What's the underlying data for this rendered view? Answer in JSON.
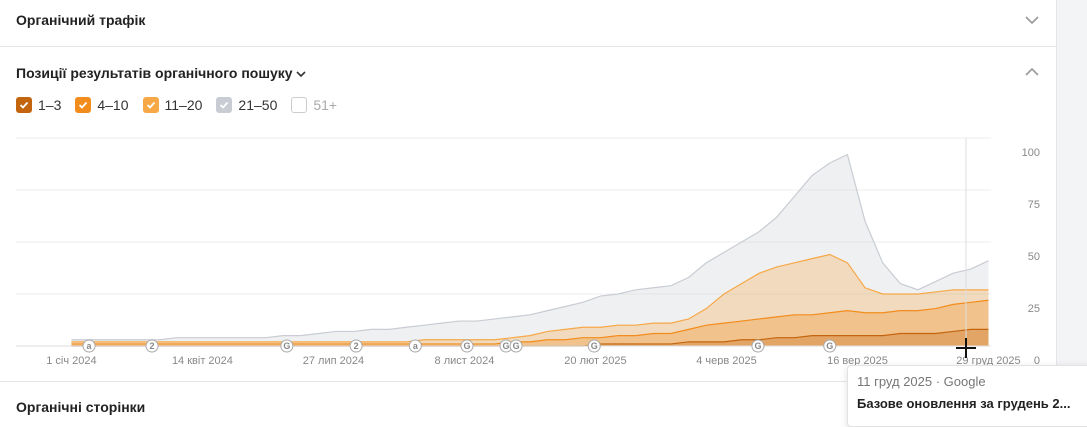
{
  "sections": {
    "traffic": "Органічний трафік",
    "positions": "Позиції результатів органічного пошуку",
    "pages": "Органічні сторінки"
  },
  "tooltip": {
    "meta": "11 груд 2025 · Google",
    "title": "Базове оновлення за грудень 2..."
  },
  "chart_data": {
    "type": "area",
    "stacked": true,
    "xlim": [
      -44,
      730
    ],
    "ylim": [
      0,
      100
    ],
    "yticks": [
      0,
      25,
      50,
      75,
      100
    ],
    "grid": true,
    "xticks": [
      {
        "value": 0,
        "label": "1 січ 2024"
      },
      {
        "value": 104,
        "label": "14 квіт 2024"
      },
      {
        "value": 208,
        "label": "27 лип 2024"
      },
      {
        "value": 312,
        "label": "8 лист 2024"
      },
      {
        "value": 416,
        "label": "20 лют 2025"
      },
      {
        "value": 520,
        "label": "4 черв 2025"
      },
      {
        "value": 624,
        "label": "16 вер 2025"
      },
      {
        "value": 728,
        "label": "29 груд 2025"
      }
    ],
    "x": [
      0,
      14,
      28,
      42,
      56,
      70,
      84,
      98,
      112,
      126,
      140,
      154,
      168,
      182,
      196,
      210,
      224,
      238,
      252,
      266,
      280,
      294,
      308,
      322,
      336,
      350,
      364,
      378,
      392,
      406,
      420,
      434,
      448,
      462,
      476,
      490,
      504,
      518,
      532,
      546,
      560,
      574,
      588,
      602,
      616,
      630,
      644,
      658,
      672,
      686,
      700,
      714,
      728
    ],
    "series": [
      {
        "name": "1–3",
        "color": "#c3650e",
        "checked": true,
        "values": [
          0,
          0,
          0,
          0,
          0,
          0,
          0,
          0,
          0,
          0,
          0,
          0,
          0,
          0,
          0,
          0,
          0,
          0,
          0,
          0,
          0,
          0,
          0,
          0,
          0,
          0,
          0,
          0,
          0,
          0,
          1,
          1,
          1,
          1,
          1,
          2,
          2,
          2,
          3,
          3,
          4,
          4,
          5,
          5,
          5,
          5,
          5,
          6,
          6,
          6,
          7,
          8,
          8
        ]
      },
      {
        "name": "4–10",
        "color": "#f28c1c",
        "checked": true,
        "values": [
          1,
          1,
          1,
          1,
          1,
          1,
          1,
          1,
          1,
          1,
          1,
          1,
          1,
          1,
          1,
          1,
          1,
          1,
          1,
          1,
          1,
          1,
          1,
          1,
          1,
          2,
          2,
          3,
          3,
          4,
          3,
          4,
          4,
          5,
          5,
          6,
          8,
          9,
          9,
          10,
          10,
          11,
          10,
          11,
          12,
          11,
          11,
          11,
          11,
          12,
          13,
          13,
          14
        ]
      },
      {
        "name": "11–20",
        "color": "#f6a847",
        "checked": true,
        "values": [
          1,
          1,
          1,
          1,
          1,
          1,
          1,
          1,
          1,
          1,
          1,
          1,
          1,
          1,
          1,
          1,
          1,
          1,
          1,
          1,
          2,
          2,
          2,
          2,
          2,
          2,
          3,
          4,
          5,
          5,
          5,
          5,
          5,
          5,
          5,
          5,
          8,
          14,
          18,
          22,
          24,
          25,
          27,
          28,
          23,
          12,
          9,
          8,
          8,
          8,
          7,
          6,
          5
        ]
      },
      {
        "name": "21–50",
        "color": "#c9ccd3",
        "checked": true,
        "values": [
          1,
          1,
          1,
          1,
          1,
          1,
          2,
          2,
          2,
          2,
          2,
          2,
          3,
          3,
          4,
          5,
          5,
          6,
          6,
          7,
          7,
          8,
          9,
          9,
          10,
          10,
          10,
          10,
          11,
          12,
          15,
          15,
          17,
          17,
          18,
          20,
          22,
          20,
          20,
          20,
          24,
          32,
          40,
          44,
          52,
          32,
          15,
          5,
          2,
          5,
          8,
          10,
          14
        ]
      },
      {
        "name": "51+",
        "color": "#ffffff",
        "checked": false
      }
    ],
    "annotations": [
      {
        "x": 14,
        "label": "a"
      },
      {
        "x": 64,
        "label": "2"
      },
      {
        "x": 171,
        "label": "G"
      },
      {
        "x": 226,
        "label": "2"
      },
      {
        "x": 273,
        "label": "a"
      },
      {
        "x": 314,
        "label": "G"
      },
      {
        "x": 345,
        "label": "G"
      },
      {
        "x": 353,
        "label": "G"
      },
      {
        "x": 415,
        "label": "G"
      },
      {
        "x": 545,
        "label": "G"
      },
      {
        "x": 602,
        "label": "G"
      }
    ]
  }
}
